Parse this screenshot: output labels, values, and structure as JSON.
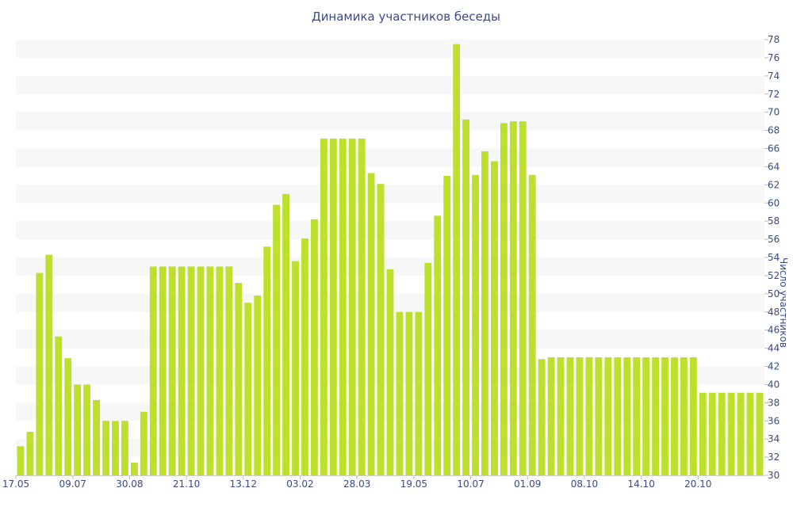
{
  "chart_data": {
    "type": "bar",
    "title": "Динамика участников беседы",
    "ylabel": "Число участников",
    "xlabel": "",
    "ylim": [
      30,
      78
    ],
    "y_ticks": [
      30,
      32,
      34,
      36,
      38,
      40,
      42,
      44,
      46,
      48,
      50,
      52,
      54,
      56,
      58,
      60,
      62,
      64,
      66,
      68,
      70,
      72,
      74,
      76,
      78
    ],
    "y_axis_side": "right",
    "grid": "alternating horizontal bands",
    "bar_color": "#bde02c",
    "band_color": "#f7f7f7",
    "x_tick_labels": [
      {
        "label": "17.05",
        "index": 0
      },
      {
        "label": "09.07",
        "index": 6
      },
      {
        "label": "30.08",
        "index": 12
      },
      {
        "label": "21.10",
        "index": 18
      },
      {
        "label": "13.12",
        "index": 24
      },
      {
        "label": "03.02",
        "index": 30
      },
      {
        "label": "28.03",
        "index": 36
      },
      {
        "label": "19.05",
        "index": 42
      },
      {
        "label": "10.07",
        "index": 48
      },
      {
        "label": "01.09",
        "index": 54
      },
      {
        "label": "08.10",
        "index": 60
      },
      {
        "label": "14.10",
        "index": 66
      },
      {
        "label": "20.10",
        "index": 72
      }
    ],
    "values": [
      33.2,
      34.8,
      52.3,
      54.3,
      45.3,
      42.9,
      40.0,
      40.0,
      38.3,
      36.0,
      36.0,
      36.0,
      31.4,
      37.0,
      53.0,
      53.0,
      53.0,
      53.0,
      53.0,
      53.0,
      53.0,
      53.0,
      53.0,
      51.2,
      49.0,
      49.8,
      55.2,
      59.8,
      61.0,
      53.6,
      56.1,
      58.2,
      67.1,
      67.1,
      67.1,
      67.1,
      67.1,
      63.3,
      62.1,
      52.7,
      48.0,
      48.0,
      48.0,
      53.4,
      58.6,
      63.0,
      77.5,
      69.2,
      63.1,
      65.7,
      64.6,
      68.8,
      69.0,
      69.0,
      63.1,
      42.8,
      43.0,
      43.0,
      43.0,
      43.0,
      43.0,
      43.0,
      43.0,
      43.0,
      43.0,
      43.0,
      43.0,
      43.0,
      43.0,
      43.0,
      43.0,
      43.0,
      39.1,
      39.1,
      39.1,
      39.1,
      39.1,
      39.1,
      39.1
    ]
  }
}
